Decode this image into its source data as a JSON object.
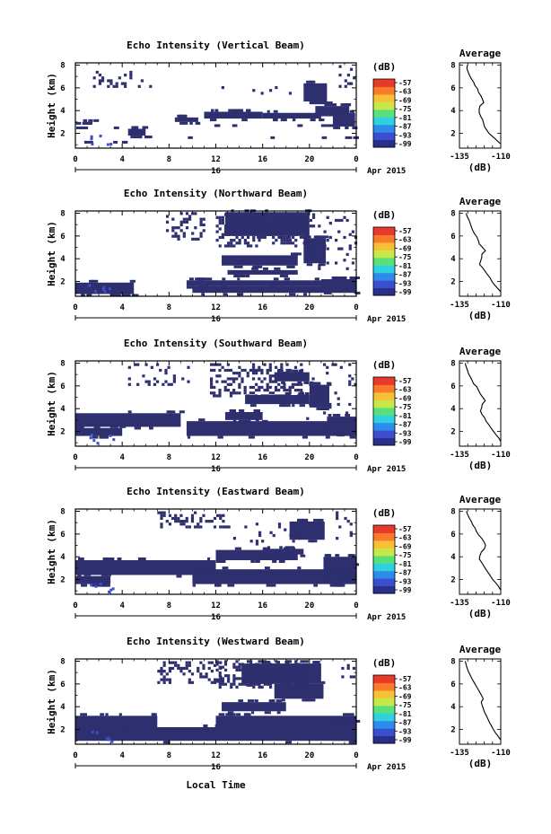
{
  "chart_data": {
    "type": "heatmap",
    "shared": {
      "x_ticks": [
        "0",
        "4",
        "8",
        "12",
        "16",
        "20",
        "0"
      ],
      "x_range_hours": [
        0,
        24
      ],
      "date_day": "16",
      "date_month_year": "Apr 2015",
      "y_ticks": [
        "8",
        "6",
        "4",
        "2"
      ],
      "y_range_km": [
        0.7,
        8.2
      ],
      "ylabel": "Height (km)",
      "xlabel": "Local Time",
      "colorbar_unit": "(dB)",
      "colorbar_ticks": [
        "-57",
        "-63",
        "-69",
        "-75",
        "-81",
        "-87",
        "-93",
        "-99"
      ],
      "colorbar_colors": [
        "#2a2f8a",
        "#3a4fd0",
        "#2f8bea",
        "#2fd1e0",
        "#5ae07a",
        "#c8e84a",
        "#f8c034",
        "#f87a2a",
        "#e83a2a"
      ],
      "avg_title": "Average",
      "avg_xlabel": "(dB)"
    },
    "panels": [
      {
        "title": "Echo Intensity (Vertical Beam)",
        "avg_x_ticks": [
          "-135",
          "-110"
        ],
        "avg_xlim": [
          -135,
          -110
        ],
        "avg_profile": [
          [
            -130.2,
            8.0
          ],
          [
            -130.5,
            7.7
          ],
          [
            -129.8,
            7.4
          ],
          [
            -128.9,
            7.1
          ],
          [
            -127.8,
            6.8
          ],
          [
            -126.4,
            6.5
          ],
          [
            -125.6,
            6.2
          ],
          [
            -124.0,
            5.9
          ],
          [
            -123.4,
            5.6
          ],
          [
            -122.0,
            5.3
          ],
          [
            -121.1,
            5.0
          ],
          [
            -120.3,
            4.7
          ],
          [
            -122.6,
            4.4
          ],
          [
            -123.1,
            4.1
          ],
          [
            -123.0,
            3.8
          ],
          [
            -122.2,
            3.5
          ],
          [
            -121.0,
            3.2
          ],
          [
            -120.4,
            2.9
          ],
          [
            -119.9,
            2.6
          ],
          [
            -118.6,
            2.3
          ],
          [
            -117.1,
            2.0
          ],
          [
            -114.8,
            1.7
          ],
          [
            -112.5,
            1.4
          ],
          [
            -110.4,
            1.1
          ]
        ]
      },
      {
        "title": "Echo Intensity (Northward Beam)",
        "avg_x_ticks": [
          "-135",
          "-110"
        ],
        "avg_xlim": [
          -135,
          -110
        ],
        "avg_profile": [
          [
            -131.0,
            8.0
          ],
          [
            -130.3,
            7.7
          ],
          [
            -129.2,
            7.4
          ],
          [
            -128.5,
            7.1
          ],
          [
            -127.8,
            6.8
          ],
          [
            -127.0,
            6.5
          ],
          [
            -125.9,
            6.2
          ],
          [
            -124.4,
            5.9
          ],
          [
            -123.6,
            5.6
          ],
          [
            -123.0,
            5.3
          ],
          [
            -121.1,
            5.0
          ],
          [
            -119.3,
            4.7
          ],
          [
            -121.4,
            4.4
          ],
          [
            -121.5,
            4.1
          ],
          [
            -122.2,
            3.8
          ],
          [
            -122.8,
            3.5
          ],
          [
            -121.0,
            3.2
          ],
          [
            -119.5,
            2.9
          ],
          [
            -118.0,
            2.6
          ],
          [
            -116.4,
            2.3
          ],
          [
            -115.3,
            2.0
          ],
          [
            -113.8,
            1.7
          ],
          [
            -111.9,
            1.4
          ],
          [
            -110.1,
            1.1
          ]
        ]
      },
      {
        "title": "Echo Intensity (Southward Beam)",
        "avg_x_ticks": [
          "-135",
          "-110"
        ],
        "avg_xlim": [
          -135,
          -110
        ],
        "avg_profile": [
          [
            -131.5,
            8.0
          ],
          [
            -131.0,
            7.7
          ],
          [
            -130.2,
            7.4
          ],
          [
            -129.6,
            7.1
          ],
          [
            -128.5,
            6.8
          ],
          [
            -127.4,
            6.5
          ],
          [
            -126.5,
            6.2
          ],
          [
            -124.4,
            5.9
          ],
          [
            -123.4,
            5.6
          ],
          [
            -122.4,
            5.3
          ],
          [
            -120.9,
            5.0
          ],
          [
            -119.4,
            4.7
          ],
          [
            -121.2,
            4.4
          ],
          [
            -121.5,
            4.1
          ],
          [
            -122.3,
            3.8
          ],
          [
            -121.4,
            3.5
          ],
          [
            -119.8,
            3.2
          ],
          [
            -118.9,
            2.9
          ],
          [
            -117.3,
            2.6
          ],
          [
            -115.9,
            2.3
          ],
          [
            -114.4,
            2.0
          ],
          [
            -112.8,
            1.7
          ],
          [
            -111.1,
            1.4
          ],
          [
            -110.0,
            1.1
          ]
        ]
      },
      {
        "title": "Echo Intensity (Eastward Beam)",
        "avg_x_ticks": [
          "-135",
          "-110"
        ],
        "avg_xlim": [
          -135,
          -110
        ],
        "avg_profile": [
          [
            -130.8,
            8.0
          ],
          [
            -130.0,
            7.7
          ],
          [
            -129.0,
            7.4
          ],
          [
            -127.8,
            7.1
          ],
          [
            -126.9,
            6.8
          ],
          [
            -125.5,
            6.5
          ],
          [
            -124.6,
            6.2
          ],
          [
            -123.3,
            5.9
          ],
          [
            -121.4,
            5.6
          ],
          [
            -120.1,
            5.3
          ],
          [
            -119.2,
            5.0
          ],
          [
            -119.9,
            4.7
          ],
          [
            -121.8,
            4.4
          ],
          [
            -122.6,
            4.1
          ],
          [
            -123.0,
            3.8
          ],
          [
            -121.5,
            3.5
          ],
          [
            -120.3,
            3.2
          ],
          [
            -119.0,
            2.9
          ],
          [
            -117.6,
            2.6
          ],
          [
            -116.2,
            2.3
          ],
          [
            -114.9,
            2.0
          ],
          [
            -113.0,
            1.7
          ],
          [
            -111.4,
            1.4
          ],
          [
            -110.2,
            1.1
          ]
        ]
      },
      {
        "title": "Echo Intensity (Westward Beam)",
        "avg_x_ticks": [
          "-135",
          "-110"
        ],
        "avg_xlim": [
          -135,
          -110
        ],
        "avg_profile": [
          [
            -131.5,
            8.0
          ],
          [
            -131.0,
            7.7
          ],
          [
            -130.4,
            7.4
          ],
          [
            -129.6,
            7.1
          ],
          [
            -128.6,
            6.8
          ],
          [
            -127.6,
            6.5
          ],
          [
            -126.4,
            6.2
          ],
          [
            -125.2,
            5.9
          ],
          [
            -124.0,
            5.6
          ],
          [
            -122.8,
            5.3
          ],
          [
            -121.7,
            5.0
          ],
          [
            -120.6,
            4.7
          ],
          [
            -121.8,
            4.4
          ],
          [
            -121.2,
            4.1
          ],
          [
            -120.5,
            3.8
          ],
          [
            -119.8,
            3.5
          ],
          [
            -118.7,
            3.2
          ],
          [
            -117.7,
            2.9
          ],
          [
            -116.8,
            2.6
          ],
          [
            -115.6,
            2.3
          ],
          [
            -114.5,
            2.0
          ],
          [
            -113.2,
            1.7
          ],
          [
            -111.6,
            1.4
          ],
          [
            -110.2,
            1.1
          ]
        ]
      }
    ]
  }
}
